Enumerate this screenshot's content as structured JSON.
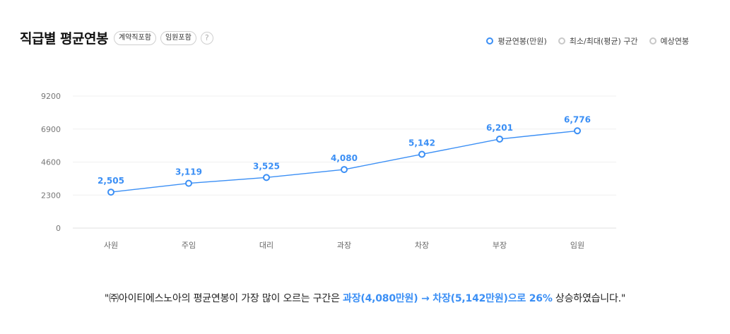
{
  "header": {
    "title": "직급별 평균연봉",
    "chips": [
      "계약직포함",
      "임원포함"
    ],
    "help_icon": "?"
  },
  "legend": [
    {
      "label": "평균연봉(만원)",
      "color": "#3b8ff5"
    },
    {
      "label": "최소/최대(평균) 구간",
      "color": "#c8c8c8"
    },
    {
      "label": "예상연봉",
      "color": "#c8c8c8"
    }
  ],
  "chart_data": {
    "type": "line",
    "categories": [
      "사원",
      "주임",
      "대리",
      "과장",
      "차장",
      "부장",
      "임원"
    ],
    "series": [
      {
        "name": "평균연봉(만원)",
        "values": [
          2505,
          3119,
          3525,
          4080,
          5142,
          6201,
          6776
        ],
        "labels": [
          "2,505",
          "3,119",
          "3,525",
          "4,080",
          "5,142",
          "6,201",
          "6,776"
        ]
      }
    ],
    "y_ticks": [
      "9200",
      "6900",
      "4600",
      "2300",
      "0"
    ],
    "ylim": [
      0,
      9200
    ],
    "grid": true,
    "line_color": "#3b8ff5"
  },
  "summary": {
    "prefix": "\"㈜아이티에스노아의 평균연봉이 가장 많이 오르는 구간은 ",
    "highlight": "과장(4,080만원) → 차장(5,142만원)으로 26%",
    "suffix": " 상승하였습니다.\""
  }
}
